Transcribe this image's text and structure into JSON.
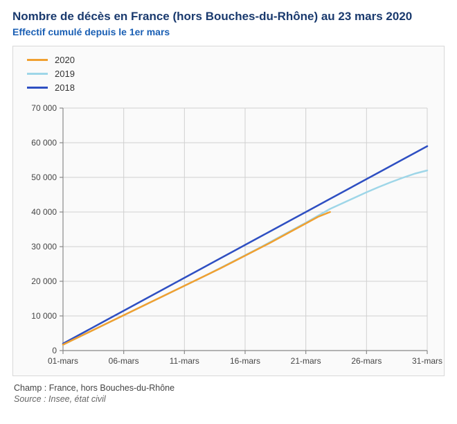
{
  "header": {
    "title": "Nombre de décès en France (hors Bouches-du-Rhône) au 23 mars 2020",
    "subtitle": "Effectif cumulé depuis le 1er mars"
  },
  "chart": {
    "type": "line",
    "background_color": "#fafafa",
    "border_color": "#d8d8d8",
    "grid_color": "#d0d0d0",
    "axis_color": "#888888",
    "tick_label_color": "#444444",
    "tick_fontsize": 12,
    "line_width": 2.5,
    "x": {
      "domain_index": [
        1,
        31
      ],
      "ticks_index": [
        1,
        6,
        11,
        16,
        21,
        26,
        31
      ],
      "tick_labels": [
        "01-mars",
        "06-mars",
        "11-mars",
        "16-mars",
        "21-mars",
        "26-mars",
        "31-mars"
      ]
    },
    "y": {
      "lim": [
        0,
        70000
      ],
      "tick_step": 10000,
      "tick_labels": [
        "0",
        "10 000",
        "20 000",
        "30 000",
        "40 000",
        "50 000",
        "60 000",
        "70 000"
      ]
    },
    "series": [
      {
        "label": "2020",
        "color": "#f0a030",
        "x": [
          1,
          2,
          3,
          4,
          5,
          6,
          7,
          8,
          9,
          10,
          11,
          12,
          13,
          14,
          15,
          16,
          17,
          18,
          19,
          20,
          21,
          22,
          23
        ],
        "y": [
          1700,
          3400,
          5100,
          6800,
          8500,
          10200,
          11900,
          13600,
          15300,
          17000,
          18700,
          20400,
          22100,
          23800,
          25600,
          27400,
          29200,
          31000,
          32900,
          34800,
          36700,
          38600,
          40000
        ]
      },
      {
        "label": "2019",
        "color": "#9ed6e8",
        "x": [
          1,
          2,
          3,
          4,
          5,
          6,
          7,
          8,
          9,
          10,
          11,
          12,
          13,
          14,
          15,
          16,
          17,
          18,
          19,
          20,
          21,
          22,
          23,
          24,
          25,
          26,
          27,
          28,
          29,
          30,
          31
        ],
        "y": [
          1700,
          3400,
          5100,
          6800,
          8500,
          10200,
          11900,
          13600,
          15300,
          17000,
          18700,
          20400,
          22100,
          23900,
          25700,
          27500,
          29300,
          31200,
          33100,
          35000,
          36900,
          38900,
          40900,
          42500,
          44100,
          45700,
          47200,
          48600,
          49900,
          51100,
          52000
        ]
      },
      {
        "label": "2018",
        "color": "#2e4fc2",
        "x": [
          1,
          2,
          3,
          4,
          5,
          6,
          7,
          8,
          9,
          10,
          11,
          12,
          13,
          14,
          15,
          16,
          17,
          18,
          19,
          20,
          21,
          22,
          23,
          24,
          25,
          26,
          27,
          28,
          29,
          30,
          31
        ],
        "y": [
          2000,
          3900,
          5800,
          7700,
          9600,
          11500,
          13400,
          15300,
          17200,
          19100,
          21000,
          22900,
          24800,
          26700,
          28600,
          30500,
          32400,
          34300,
          36200,
          38100,
          40000,
          41900,
          43800,
          45700,
          47600,
          49500,
          51400,
          53300,
          55200,
          57100,
          59000
        ]
      }
    ]
  },
  "footer": {
    "line1": "Champ : France, hors Bouches-du-Rhône",
    "line2": "Source : Insee, état civil"
  }
}
